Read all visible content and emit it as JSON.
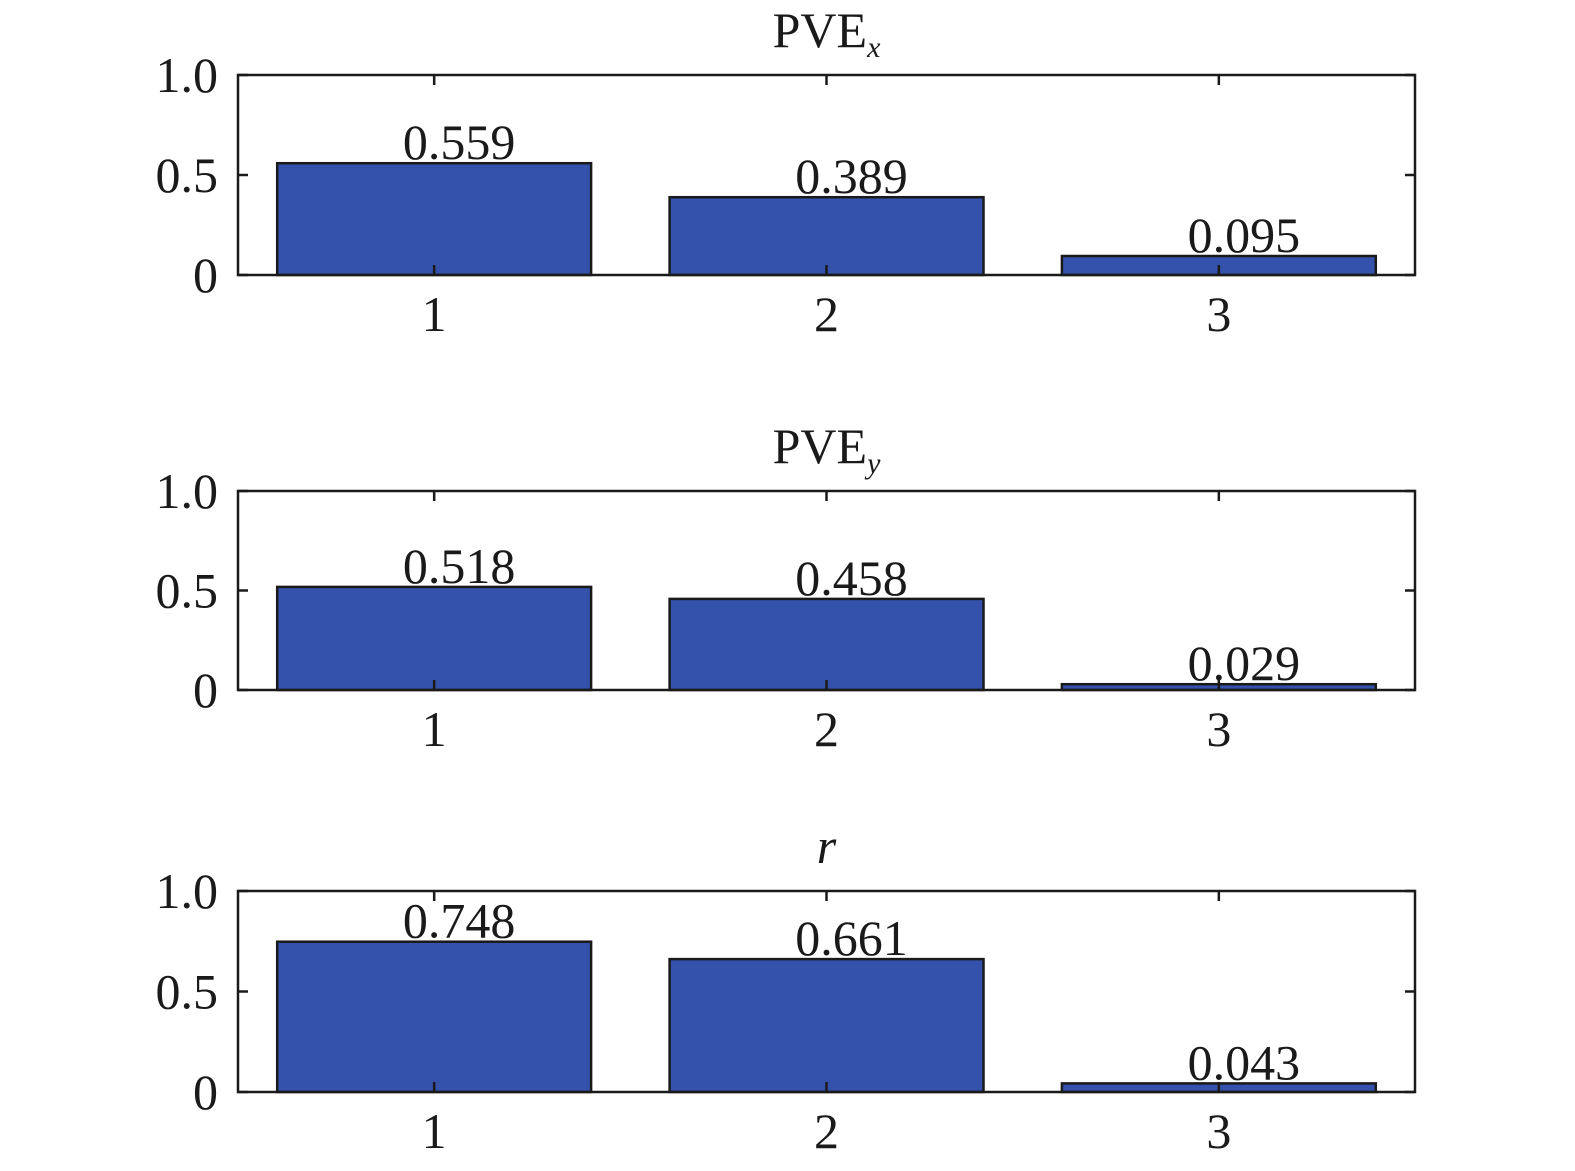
{
  "chart_data": [
    {
      "type": "bar",
      "title": {
        "main": "PVE",
        "sub": "x",
        "italic": false
      },
      "categories": [
        "1",
        "2",
        "3"
      ],
      "values": [
        0.559,
        0.389,
        0.095
      ],
      "value_labels": [
        "0.559",
        "0.389",
        "0.095"
      ],
      "ylim": [
        0,
        1.0
      ],
      "yticks": [
        0,
        0.5,
        1.0
      ],
      "ytick_labels": [
        "0",
        "0.5",
        "1.0"
      ],
      "xlabel": "",
      "ylabel": "",
      "grid": false,
      "bar_color": "#3452ab"
    },
    {
      "type": "bar",
      "title": {
        "main": "PVE",
        "sub": "y",
        "italic": false
      },
      "categories": [
        "1",
        "2",
        "3"
      ],
      "values": [
        0.518,
        0.458,
        0.029
      ],
      "value_labels": [
        "0.518",
        "0.458",
        "0.029"
      ],
      "ylim": [
        0,
        1.0
      ],
      "yticks": [
        0,
        0.5,
        1.0
      ],
      "ytick_labels": [
        "0",
        "0.5",
        "1.0"
      ],
      "xlabel": "",
      "ylabel": "",
      "grid": false,
      "bar_color": "#3452ab"
    },
    {
      "type": "bar",
      "title": {
        "main": "r",
        "sub": "",
        "italic": true
      },
      "categories": [
        "1",
        "2",
        "3"
      ],
      "values": [
        0.748,
        0.661,
        0.043
      ],
      "value_labels": [
        "0.748",
        "0.661",
        "0.043"
      ],
      "ylim": [
        0,
        1.0
      ],
      "yticks": [
        0,
        0.5,
        1.0
      ],
      "ytick_labels": [
        "0",
        "0.5",
        "1.0"
      ],
      "xlabel": "",
      "ylabel": "",
      "grid": false,
      "bar_color": "#3452ab"
    }
  ],
  "colors": {
    "axis": "#1a1a1a",
    "bar_edge": "#1a1a1a"
  }
}
